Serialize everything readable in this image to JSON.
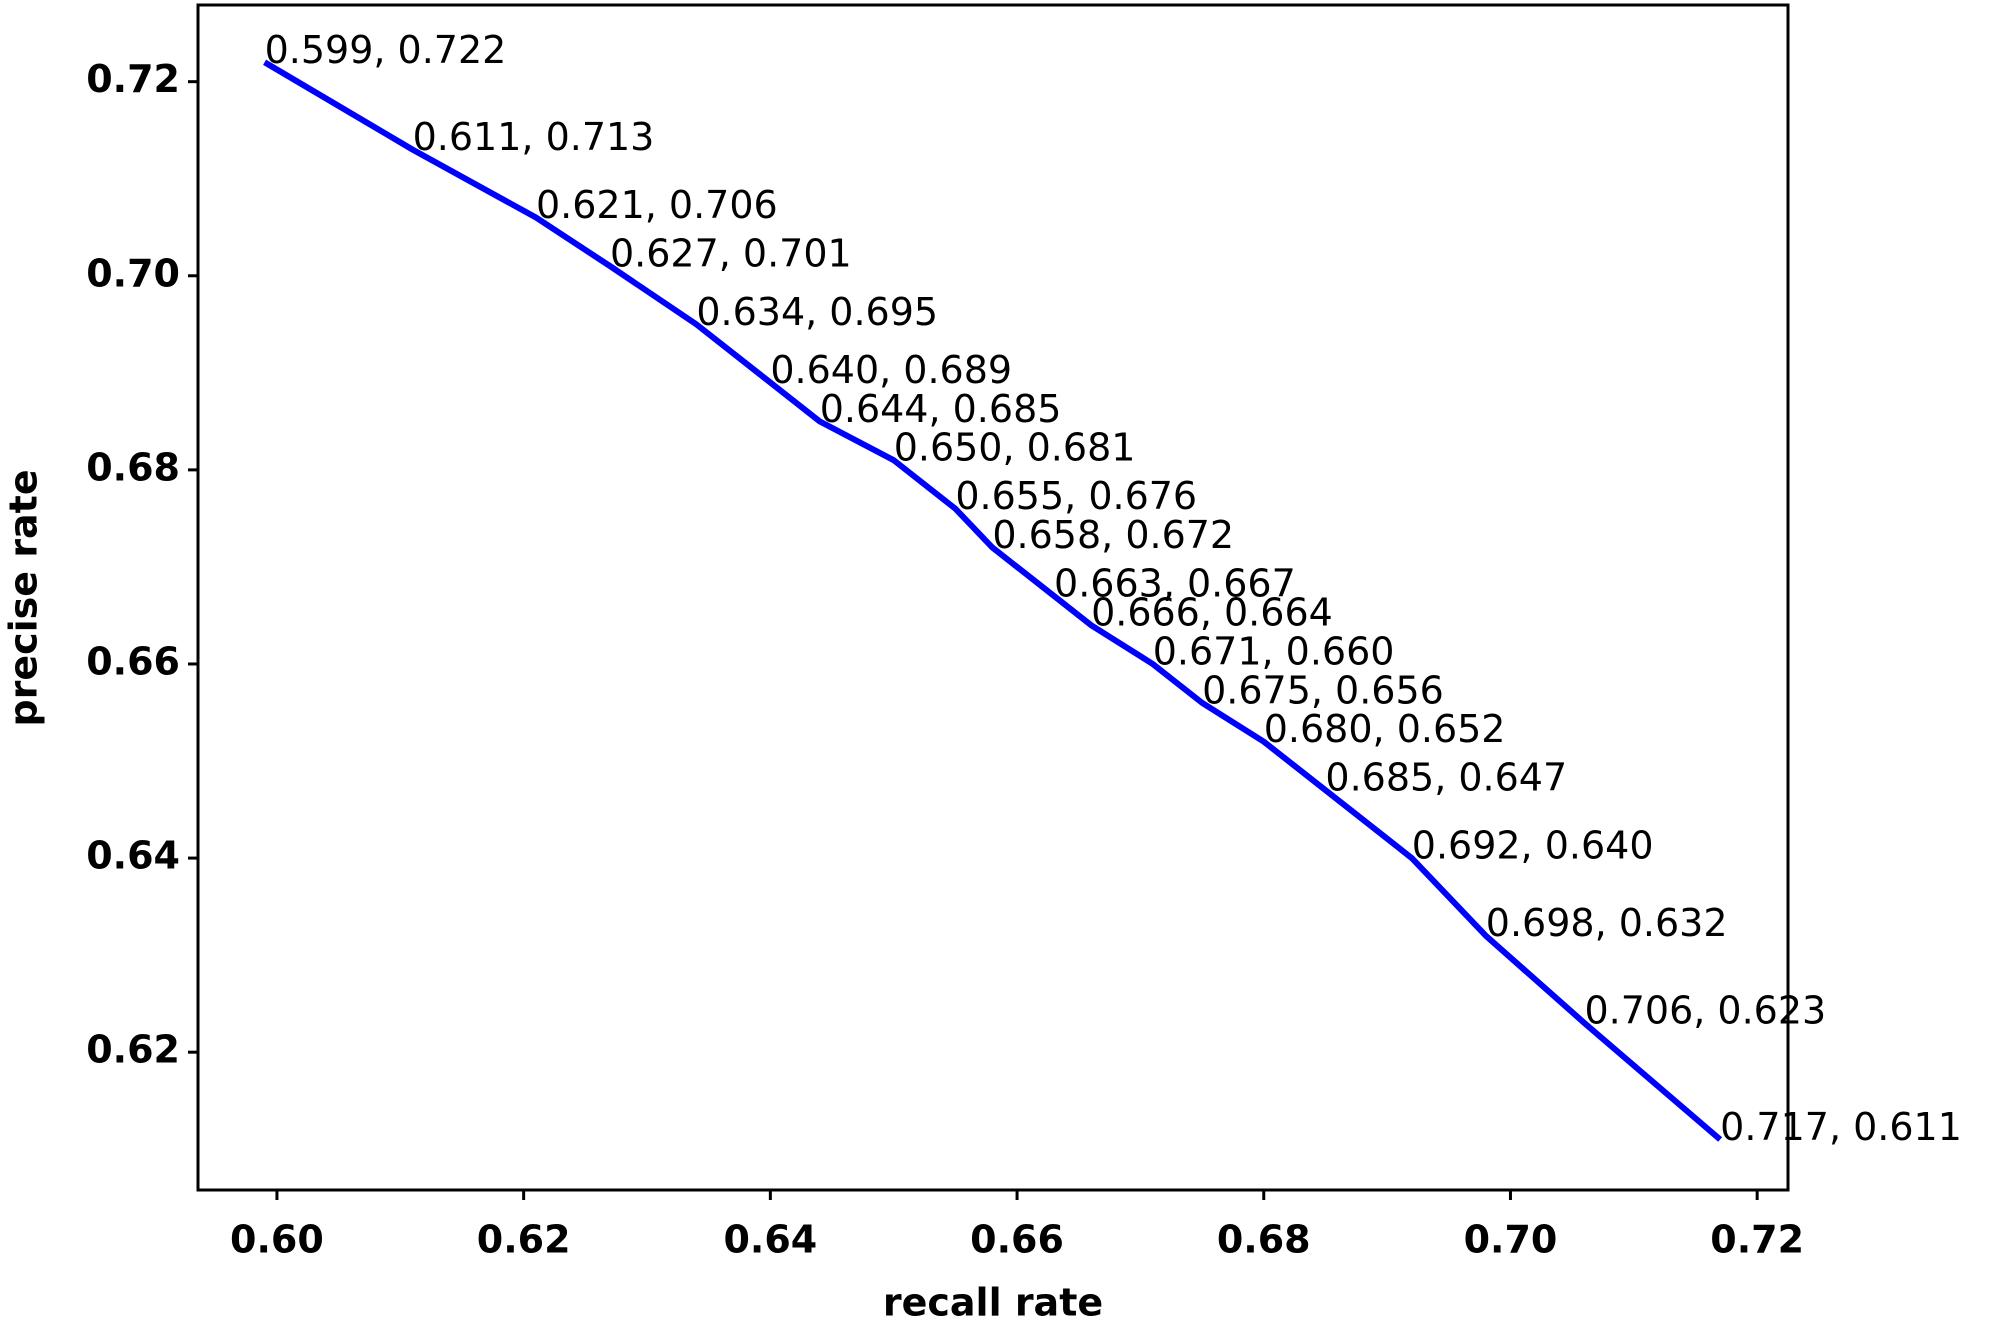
{
  "chart_data": {
    "type": "line",
    "x_label": "recall rate",
    "y_label": "precise rate",
    "x": [
      0.599,
      0.611,
      0.621,
      0.627,
      0.634,
      0.64,
      0.644,
      0.65,
      0.655,
      0.658,
      0.663,
      0.666,
      0.671,
      0.675,
      0.68,
      0.685,
      0.692,
      0.698,
      0.706,
      0.717
    ],
    "series": [
      {
        "color": "#0000ff",
        "values": [
          0.722,
          0.713,
          0.706,
          0.701,
          0.695,
          0.689,
          0.685,
          0.681,
          0.676,
          0.672,
          0.667,
          0.664,
          0.66,
          0.656,
          0.652,
          0.647,
          0.64,
          0.632,
          0.623,
          0.611
        ]
      }
    ],
    "annotations": [
      "0.599, 0.722",
      "0.611, 0.713",
      "0.621, 0.706",
      "0.627, 0.701",
      "0.634, 0.695",
      "0.640, 0.689",
      "0.644, 0.685",
      "0.650, 0.681",
      "0.655, 0.676",
      "0.658, 0.672",
      "0.663, 0.667",
      "0.666, 0.664",
      "0.671, 0.660",
      "0.675, 0.656",
      "0.680, 0.652",
      "0.685, 0.647",
      "0.692, 0.640",
      "0.698, 0.632",
      "0.706, 0.623",
      "0.717, 0.611"
    ],
    "xlim": [
      0.5936,
      0.7225
    ],
    "ylim": [
      0.6058,
      0.7279
    ],
    "xticks": [
      {
        "value": 0.6,
        "label": "0.60"
      },
      0.62,
      0.64,
      0.66,
      0.68,
      {
        "value": 0.7,
        "label": "0.70"
      },
      0.72
    ],
    "yticks": [
      0.62,
      0.64,
      0.66,
      0.68,
      {
        "value": 0.7,
        "label": "0.70"
      },
      0.72
    ],
    "grid": false
  }
}
